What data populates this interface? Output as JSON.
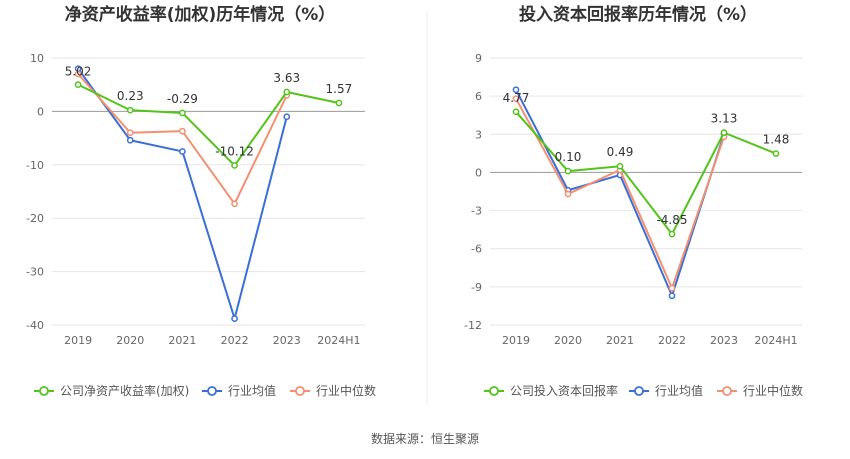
{
  "source_label": "数据来源：恒生聚源",
  "charts": [
    {
      "title": "净资产收益率(加权)历年情况（%）",
      "legend": [
        "公司净资产收益率(加权)",
        "行业均值",
        "行业中位数"
      ]
    },
    {
      "title": "投入资本回报率历年情况（%）",
      "legend": [
        "公司投入资本回报率",
        "行业均值",
        "行业中位数"
      ]
    }
  ],
  "chart_data": [
    {
      "type": "line",
      "title": "净资产收益率(加权)历年情况（%）",
      "categories": [
        "2019",
        "2020",
        "2021",
        "2022",
        "2023",
        "2024H1"
      ],
      "ylim": [
        -40,
        10
      ],
      "yticks": [
        10,
        0,
        -10,
        -20,
        -30,
        -40
      ],
      "grid": true,
      "legend_position": "bottom",
      "series": [
        {
          "name": "公司净资产收益率(加权)",
          "color": "#52c41a",
          "labelled": true,
          "labels": [
            "5.02",
            "0.23",
            "-0.29",
            "-10.12",
            "3.63",
            "1.57"
          ],
          "values": [
            5.02,
            0.23,
            -0.29,
            -10.12,
            3.63,
            1.57
          ]
        },
        {
          "name": "行业均值",
          "color": "#3a6fd8",
          "values": [
            8.0,
            -5.4,
            -7.5,
            -38.8,
            -1.0,
            null
          ]
        },
        {
          "name": "行业中位数",
          "color": "#f39070",
          "values": [
            7.0,
            -4.0,
            -3.7,
            -17.3,
            3.0,
            null
          ]
        }
      ]
    },
    {
      "type": "line",
      "title": "投入资本回报率历年情况（%）",
      "categories": [
        "2019",
        "2020",
        "2021",
        "2022",
        "2023",
        "2024H1"
      ],
      "ylim": [
        -12,
        9
      ],
      "yticks": [
        9,
        6,
        3,
        0,
        -3,
        -6,
        -9,
        -12
      ],
      "grid": true,
      "legend_position": "bottom",
      "series": [
        {
          "name": "公司投入资本回报率",
          "color": "#52c41a",
          "labelled": true,
          "labels": [
            "4.77",
            "0.10",
            "0.49",
            "-4.85",
            "3.13",
            "1.48"
          ],
          "values": [
            4.77,
            0.1,
            0.49,
            -4.85,
            3.13,
            1.48
          ]
        },
        {
          "name": "行业均值",
          "color": "#3a6fd8",
          "values": [
            6.5,
            -1.4,
            -0.2,
            -9.7,
            3.0,
            null
          ]
        },
        {
          "name": "行业中位数",
          "color": "#f39070",
          "values": [
            5.8,
            -1.7,
            0.2,
            -9.1,
            2.8,
            null
          ]
        }
      ]
    }
  ]
}
